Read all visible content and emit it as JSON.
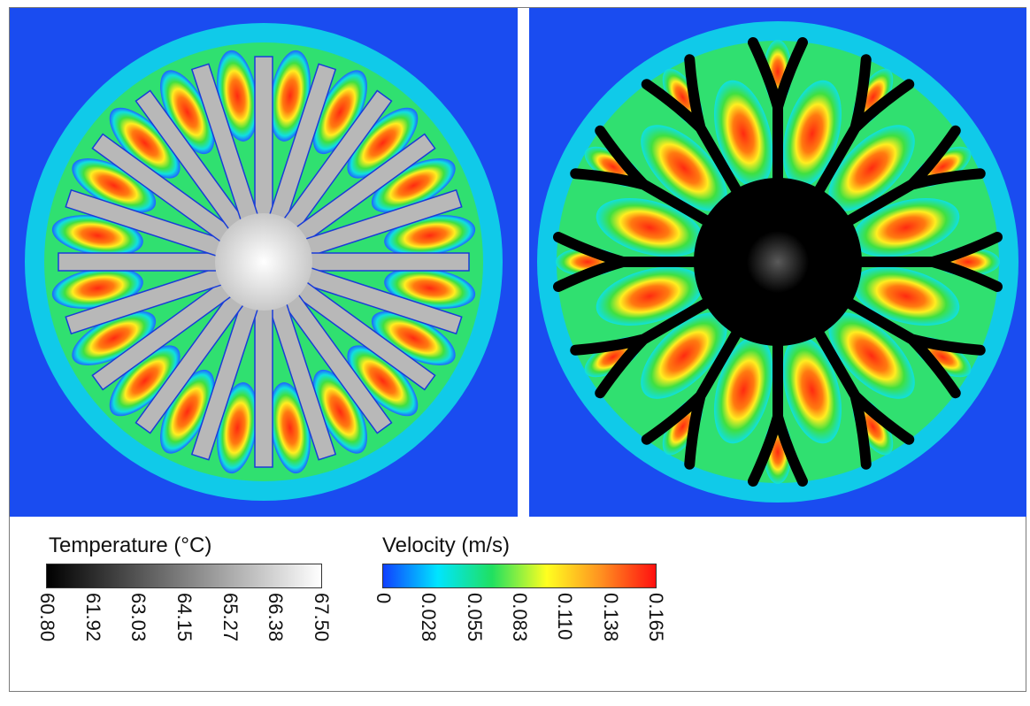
{
  "legends": {
    "temperature": {
      "title": "Temperature (°C)",
      "ticks": [
        "60.80",
        "61.92",
        "63.03",
        "64.15",
        "65.27",
        "66.38",
        "67.50"
      ],
      "colors": [
        "#000000",
        "#ffffff"
      ]
    },
    "velocity": {
      "title": "Velocity (m/s)",
      "ticks": [
        "0",
        "0.028",
        "0.055",
        "0.083",
        "0.110",
        "0.138",
        "0.165"
      ],
      "colors": [
        "#1040ff",
        "#00e5ff",
        "#20e060",
        "#ffff20",
        "#ff9020",
        "#ff1010"
      ]
    }
  },
  "panels": {
    "left": {
      "fin_count": 20,
      "fin_color": "#b8b8b8"
    },
    "right": {
      "branch_count": 12,
      "fin_color": "#000000"
    }
  }
}
